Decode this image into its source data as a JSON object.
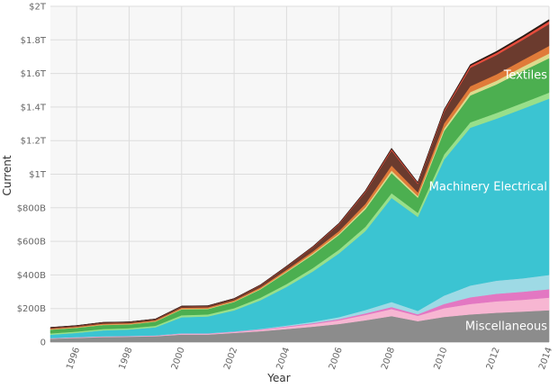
{
  "chart_data": {
    "type": "area",
    "stacked": true,
    "xlabel": "Year",
    "ylabel": "Current",
    "xlim": [
      1995,
      2014
    ],
    "ylim": [
      0,
      2000000000000
    ],
    "grid": true,
    "background": "#f7f7f7",
    "x": [
      1995,
      1996,
      1997,
      1998,
      1999,
      2000,
      2001,
      2002,
      2003,
      2004,
      2005,
      2006,
      2007,
      2008,
      2009,
      2010,
      2011,
      2012,
      2013,
      2014
    ],
    "x_tick_labels": [
      "1996",
      "1998",
      "2000",
      "2002",
      "2004",
      "2006",
      "2008",
      "2010",
      "2012",
      "2014"
    ],
    "x_tick_values": [
      1996,
      1998,
      2000,
      2002,
      2004,
      2006,
      2008,
      2010,
      2012,
      2014
    ],
    "y_tick_labels": [
      "0",
      "$200B",
      "$400B",
      "$600B",
      "$800B",
      "$1T",
      "$1.2T",
      "$1.4T",
      "$1.6T",
      "$1.8T",
      "$2T"
    ],
    "y_tick_values": [
      0,
      200000000000,
      400000000000,
      600000000000,
      800000000000,
      1000000000000,
      1200000000000,
      1400000000000,
      1600000000000,
      1800000000000,
      2000000000000
    ],
    "series": [
      {
        "name": "Miscellaneous",
        "color": "#8c8c8c",
        "values": [
          20000000000.0,
          25000000000.0,
          30000000000.0,
          32000000000.0,
          35000000000.0,
          45000000000.0,
          45000000000.0,
          55000000000.0,
          65000000000.0,
          78000000000.0,
          92000000000.0,
          108000000000.0,
          130000000000.0,
          155000000000.0,
          125000000000.0,
          150000000000.0,
          165000000000.0,
          175000000000.0,
          182000000000.0,
          190000000000.0
        ]
      },
      {
        "color": "#f7b6d2",
        "values": [
          2000000000.0,
          3000000000.0,
          3000000000.0,
          3000000000.0,
          3000000000.0,
          4000000000.0,
          4000000000.0,
          5000000000.0,
          8000000000.0,
          12000000000.0,
          16000000000.0,
          22000000000.0,
          32000000000.0,
          42000000000.0,
          32000000000.0,
          52000000000.0,
          62000000000.0,
          68000000000.0,
          70000000000.0,
          75000000000.0
        ]
      },
      {
        "color": "#e377c2",
        "values": [
          1000000000.0,
          1000000000.0,
          1000000000.0,
          1000000000.0,
          1000000000.0,
          2000000000.0,
          2000000000.0,
          2000000000.0,
          3000000000.0,
          4000000000.0,
          5000000000.0,
          7000000000.0,
          9000000000.0,
          12000000000.0,
          9000000000.0,
          25000000000.0,
          40000000000.0,
          45000000000.0,
          48000000000.0,
          50000000000.0
        ]
      },
      {
        "color": "#9edae5",
        "values": [
          1000000000.0,
          1000000000.0,
          1000000000.0,
          1000000000.0,
          1000000000.0,
          2000000000.0,
          2000000000.0,
          2000000000.0,
          3000000000.0,
          5000000000.0,
          8000000000.0,
          12000000000.0,
          20000000000.0,
          30000000000.0,
          20000000000.0,
          50000000000.0,
          70000000000.0,
          78000000000.0,
          80000000000.0,
          85000000000.0
        ]
      },
      {
        "name": "Machinery Electrical",
        "color": "#3bc4d2",
        "values": [
          20000000000.0,
          25000000000.0,
          35000000000.0,
          38000000000.0,
          48000000000.0,
          95000000000.0,
          100000000000.0,
          125000000000.0,
          170000000000.0,
          230000000000.0,
          300000000000.0,
          380000000000.0,
          470000000000.0,
          620000000000.0,
          560000000000.0,
          810000000000.0,
          940000000000.0,
          965000000000.0,
          1010000000000.0,
          1050000000000.0
        ]
      },
      {
        "color": "#98df8a",
        "values": [
          8000000000.0,
          8000000000.0,
          8000000000.0,
          8000000000.0,
          9000000000.0,
          12000000000.0,
          12000000000.0,
          13000000000.0,
          15000000000.0,
          17000000000.0,
          20000000000.0,
          22000000000.0,
          25000000000.0,
          28000000000.0,
          24000000000.0,
          30000000000.0,
          32000000000.0,
          34000000000.0,
          35000000000.0,
          36000000000.0
        ]
      },
      {
        "name": "Textiles",
        "color": "#4caf50",
        "values": [
          22000000000.0,
          22000000000.0,
          24000000000.0,
          22000000000.0,
          25000000000.0,
          35000000000.0,
          32000000000.0,
          37000000000.0,
          50000000000.0,
          70000000000.0,
          80000000000.0,
          88000000000.0,
          105000000000.0,
          120000000000.0,
          90000000000.0,
          140000000000.0,
          160000000000.0,
          170000000000.0,
          190000000000.0,
          205000000000.0
        ]
      },
      {
        "color": "#dbdb8d",
        "values": [
          2000000000.0,
          2000000000.0,
          2000000000.0,
          2000000000.0,
          2000000000.0,
          3000000000.0,
          3000000000.0,
          3000000000.0,
          4000000000.0,
          5000000000.0,
          7000000000.0,
          8000000000.0,
          12000000000.0,
          15000000000.0,
          10000000000.0,
          15000000000.0,
          20000000000.0,
          22000000000.0,
          25000000000.0,
          28000000000.0
        ]
      },
      {
        "color": "#e07b39",
        "values": [
          5000000000.0,
          5000000000.0,
          6000000000.0,
          6000000000.0,
          6000000000.0,
          7000000000.0,
          7000000000.0,
          7000000000.0,
          8000000000.0,
          10000000000.0,
          12000000000.0,
          15000000000.0,
          20000000000.0,
          30000000000.0,
          22000000000.0,
          30000000000.0,
          35000000000.0,
          38000000000.0,
          40000000000.0,
          45000000000.0
        ]
      },
      {
        "color": "#6b3b2e",
        "values": [
          5000000000.0,
          5000000000.0,
          6000000000.0,
          6000000000.0,
          6000000000.0,
          8000000000.0,
          8000000000.0,
          9000000000.0,
          12000000000.0,
          18000000000.0,
          25000000000.0,
          40000000000.0,
          70000000000.0,
          90000000000.0,
          50000000000.0,
          70000000000.0,
          110000000000.0,
          115000000000.0,
          120000000000.0,
          130000000000.0
        ]
      },
      {
        "color": "#e74c3c",
        "values": [
          1000000000.0,
          1000000000.0,
          1000000000.0,
          1000000000.0,
          1000000000.0,
          1000000000.0,
          1000000000.0,
          1000000000.0,
          2000000000.0,
          2000000000.0,
          3000000000.0,
          4000000000.0,
          5000000000.0,
          8000000000.0,
          6000000000.0,
          8000000000.0,
          12000000000.0,
          14000000000.0,
          15000000000.0,
          17000000000.0
        ]
      },
      {
        "color": "#2a1a14",
        "values": [
          1000000000.0,
          1000000000.0,
          1000000000.0,
          1000000000.0,
          1000000000.0,
          1000000000.0,
          1000000000.0,
          1000000000.0,
          1000000000.0,
          2000000000.0,
          2000000000.0,
          3000000000.0,
          4000000000.0,
          5000000000.0,
          4000000000.0,
          5000000000.0,
          7000000000.0,
          8000000000.0,
          9000000000.0,
          10000000000.0
        ]
      }
    ]
  }
}
